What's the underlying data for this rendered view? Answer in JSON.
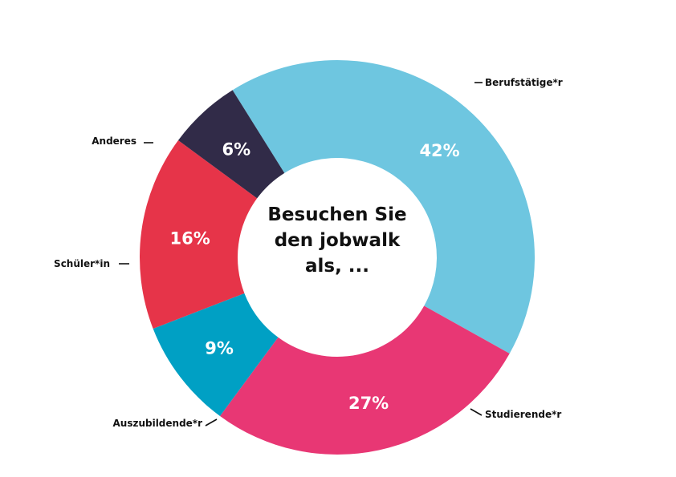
{
  "chart_data": {
    "type": "pie",
    "title": "Besuchen Sie\nden jobwalk\nals, ...",
    "slices": [
      {
        "label": "Berufstätige*r",
        "value": 42,
        "display": "42%",
        "color": "#6EC6E0"
      },
      {
        "label": "Studierende*r",
        "value": 27,
        "display": "27%",
        "color": "#E83774"
      },
      {
        "label": "Auszubildende*r",
        "value": 9,
        "display": "9%",
        "color": "#00A0C4"
      },
      {
        "label": "Schüler*in",
        "value": 16,
        "display": "16%",
        "color": "#E63449"
      },
      {
        "label": "Anderes",
        "value": 6,
        "display": "6%",
        "color": "#312B48"
      }
    ]
  }
}
